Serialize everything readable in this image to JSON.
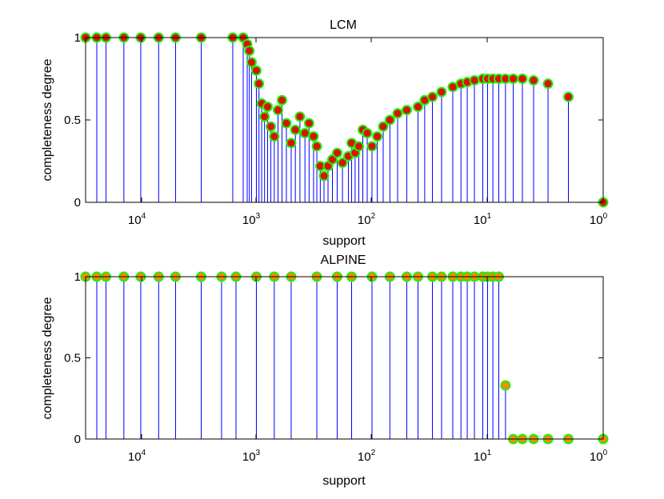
{
  "colors": {
    "stem": "#0000ff",
    "marker_fill": "#dd1100",
    "marker_edge": "#22ee11",
    "marker_fill_alt": "#ff8800",
    "axis": "#000000"
  },
  "chart_data": [
    {
      "type": "stem",
      "title": "LCM",
      "xlabel": "support",
      "ylabel": "completeness degree",
      "xscale": "log",
      "x_reversed": true,
      "xlim": [
        30000,
        1
      ],
      "ylim": [
        0,
        1
      ],
      "xticks": [
        {
          "base": "10",
          "exp": "4"
        },
        {
          "base": "10",
          "exp": "3"
        },
        {
          "base": "10",
          "exp": "2"
        },
        {
          "base": "10",
          "exp": "1"
        },
        {
          "base": "10",
          "exp": "0"
        }
      ],
      "yticks": [
        "0",
        "0.5",
        "1"
      ],
      "points": [
        [
          30000,
          1
        ],
        [
          24000,
          1
        ],
        [
          20000,
          1
        ],
        [
          14000,
          1
        ],
        [
          10000,
          1
        ],
        [
          7000,
          1
        ],
        [
          5000,
          1
        ],
        [
          3000,
          1
        ],
        [
          1600,
          1
        ],
        [
          1300,
          1
        ],
        [
          1200,
          0.96
        ],
        [
          1150,
          0.92
        ],
        [
          1100,
          0.85
        ],
        [
          1000,
          0.8
        ],
        [
          950,
          0.72
        ],
        [
          900,
          0.6
        ],
        [
          850,
          0.52
        ],
        [
          800,
          0.58
        ],
        [
          750,
          0.46
        ],
        [
          700,
          0.4
        ],
        [
          650,
          0.56
        ],
        [
          600,
          0.62
        ],
        [
          550,
          0.48
        ],
        [
          500,
          0.36
        ],
        [
          460,
          0.44
        ],
        [
          420,
          0.52
        ],
        [
          380,
          0.42
        ],
        [
          350,
          0.48
        ],
        [
          320,
          0.4
        ],
        [
          300,
          0.34
        ],
        [
          280,
          0.22
        ],
        [
          260,
          0.16
        ],
        [
          240,
          0.22
        ],
        [
          220,
          0.26
        ],
        [
          200,
          0.3
        ],
        [
          180,
          0.24
        ],
        [
          160,
          0.28
        ],
        [
          150,
          0.36
        ],
        [
          140,
          0.3
        ],
        [
          130,
          0.34
        ],
        [
          120,
          0.44
        ],
        [
          110,
          0.42
        ],
        [
          100,
          0.34
        ],
        [
          90,
          0.4
        ],
        [
          80,
          0.46
        ],
        [
          70,
          0.5
        ],
        [
          60,
          0.54
        ],
        [
          50,
          0.56
        ],
        [
          40,
          0.58
        ],
        [
          35,
          0.62
        ],
        [
          30,
          0.64
        ],
        [
          25,
          0.67
        ],
        [
          20,
          0.7
        ],
        [
          17,
          0.72
        ],
        [
          15,
          0.73
        ],
        [
          13,
          0.74
        ],
        [
          11,
          0.75
        ],
        [
          10,
          0.75
        ],
        [
          9,
          0.75
        ],
        [
          8,
          0.75
        ],
        [
          7,
          0.75
        ],
        [
          6,
          0.75
        ],
        [
          5,
          0.75
        ],
        [
          4,
          0.74
        ],
        [
          3,
          0.72
        ],
        [
          2,
          0.64
        ],
        [
          1,
          0
        ]
      ]
    },
    {
      "type": "stem",
      "title": "ALPINE",
      "xlabel": "support",
      "ylabel": "completeness degree",
      "xscale": "log",
      "x_reversed": true,
      "xlim": [
        30000,
        1
      ],
      "ylim": [
        0,
        1
      ],
      "xticks": [
        {
          "base": "10",
          "exp": "4"
        },
        {
          "base": "10",
          "exp": "3"
        },
        {
          "base": "10",
          "exp": "2"
        },
        {
          "base": "10",
          "exp": "1"
        },
        {
          "base": "10",
          "exp": "0"
        }
      ],
      "yticks": [
        "0",
        "0.5",
        "1"
      ],
      "points": [
        [
          30000,
          1
        ],
        [
          24000,
          1
        ],
        [
          20000,
          1
        ],
        [
          14000,
          1
        ],
        [
          10000,
          1
        ],
        [
          7000,
          1
        ],
        [
          5000,
          1
        ],
        [
          3000,
          1
        ],
        [
          2000,
          1
        ],
        [
          1500,
          1
        ],
        [
          1000,
          1
        ],
        [
          700,
          1
        ],
        [
          500,
          1
        ],
        [
          300,
          1
        ],
        [
          200,
          1
        ],
        [
          150,
          1
        ],
        [
          100,
          1
        ],
        [
          70,
          1
        ],
        [
          50,
          1
        ],
        [
          40,
          1
        ],
        [
          30,
          1
        ],
        [
          25,
          1
        ],
        [
          20,
          1
        ],
        [
          17,
          1
        ],
        [
          15,
          1
        ],
        [
          13,
          1
        ],
        [
          11,
          1
        ],
        [
          10,
          1
        ],
        [
          9,
          1
        ],
        [
          8,
          1
        ],
        [
          7,
          0.33
        ],
        [
          6,
          0
        ],
        [
          5,
          0
        ],
        [
          4,
          0
        ],
        [
          3,
          0
        ],
        [
          2,
          0
        ],
        [
          1,
          0
        ]
      ]
    }
  ]
}
